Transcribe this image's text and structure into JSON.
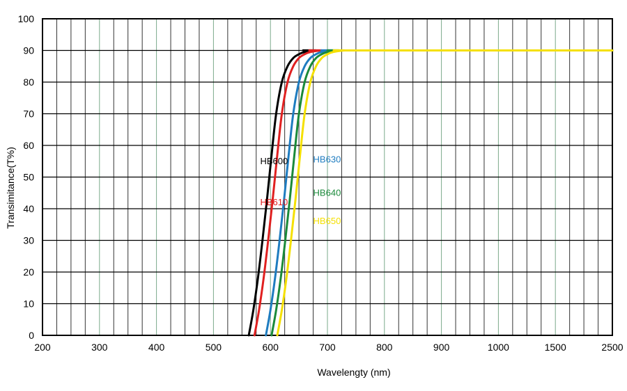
{
  "chart_data": {
    "type": "line",
    "title": "",
    "xlabel": "Wavelengty (nm)",
    "ylabel": "Transimitance(T%)",
    "ylim": [
      0,
      100
    ],
    "yticks": [
      "0",
      "10",
      "20",
      "30",
      "40",
      "50",
      "60",
      "70",
      "80",
      "90",
      "100"
    ],
    "x_scale": "piecewise",
    "xticks": [
      "200",
      "300",
      "400",
      "500",
      "600",
      "700",
      "800",
      "900",
      "1000",
      "1500",
      "2500"
    ],
    "grid": true,
    "series": [
      {
        "name": "HB600",
        "color": "#000000",
        "x": [
          562,
          570,
          578,
          586,
          594,
          602,
          610,
          620,
          630,
          640,
          650,
          660,
          680,
          700,
          2500
        ],
        "y": [
          0,
          8,
          18,
          30,
          43,
          57,
          70,
          80,
          85,
          87.6,
          88.8,
          89.5,
          90,
          90,
          90
        ]
      },
      {
        "name": "HB610",
        "color": "#e02020",
        "x": [
          572,
          580,
          588,
          596,
          604,
          612,
          620,
          630,
          640,
          650,
          660,
          670,
          690,
          710,
          2500
        ],
        "y": [
          0,
          8,
          18,
          30,
          43,
          57,
          70,
          80,
          85,
          87.6,
          88.8,
          89.5,
          90,
          90,
          90
        ]
      },
      {
        "name": "HB630",
        "color": "#1e7cc0",
        "x": [
          592,
          600,
          608,
          616,
          624,
          632,
          640,
          650,
          660,
          670,
          680,
          690,
          710,
          730,
          2500
        ],
        "y": [
          0,
          8,
          18,
          30,
          43,
          57,
          70,
          80,
          85,
          87.6,
          88.8,
          89.5,
          90,
          90,
          90
        ]
      },
      {
        "name": "HB640",
        "color": "#1a8a3a",
        "x": [
          602,
          610,
          618,
          626,
          634,
          642,
          650,
          660,
          670,
          680,
          690,
          700,
          720,
          740,
          2500
        ],
        "y": [
          0,
          8,
          18,
          30,
          43,
          57,
          70,
          80,
          85,
          87.6,
          88.8,
          89.5,
          90,
          90,
          90
        ]
      },
      {
        "name": "HB650",
        "color": "#f5e000",
        "x": [
          612,
          620,
          628,
          636,
          644,
          652,
          660,
          670,
          680,
          690,
          700,
          710,
          730,
          750,
          2500
        ],
        "y": [
          0,
          8,
          18,
          30,
          43,
          57,
          70,
          80,
          85,
          87.6,
          88.8,
          89.5,
          90,
          90,
          90
        ]
      }
    ],
    "annotations": [
      {
        "text": "HB600",
        "color": "#000000",
        "x": 582,
        "y": 55
      },
      {
        "text": "HB610",
        "color": "#e02020",
        "x": 582,
        "y": 42
      },
      {
        "text": "HB630",
        "color": "#1e7cc0",
        "x": 675,
        "y": 55.5
      },
      {
        "text": "HB640",
        "color": "#1a8a3a",
        "x": 675,
        "y": 45
      },
      {
        "text": "HB650",
        "color": "#f5e000",
        "x": 675,
        "y": 36
      }
    ]
  }
}
